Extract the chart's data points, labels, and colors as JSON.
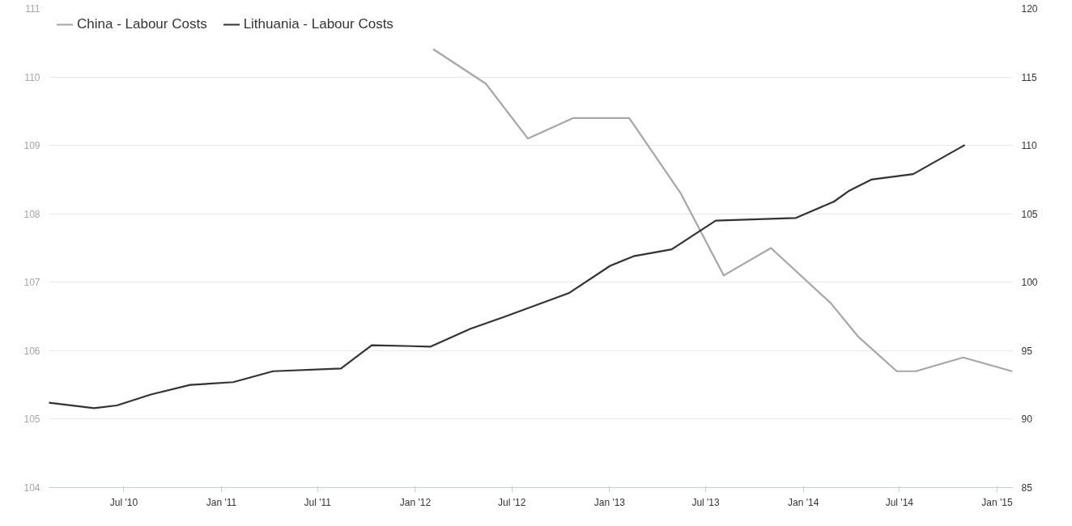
{
  "chart_data": {
    "type": "line",
    "series": [
      {
        "name": "China - Labour Costs",
        "color": "#a6a6a6",
        "axis": "y",
        "x": [
          "2012-02-05",
          "2012-05-13",
          "2012-07-31",
          "2012-10-25",
          "2013-02-07",
          "2013-05-15",
          "2013-08-04",
          "2013-11-01",
          "2014-02-21",
          "2014-04-15",
          "2014-06-26",
          "2014-08-01",
          "2014-10-29",
          "2015-01-29"
        ],
        "values": [
          110.4,
          109.9,
          109.1,
          109.4,
          109.4,
          108.3,
          107.1,
          107.5,
          106.7,
          106.2,
          105.7,
          105.7,
          105.9,
          105.7
        ]
      },
      {
        "name": "Lithuania - Labour Costs",
        "color": "#333333",
        "axis": "y2",
        "x": [
          "2010-02-10",
          "2010-05-06",
          "2010-06-18",
          "2010-08-21",
          "2010-11-03",
          "2011-01-23",
          "2011-04-08",
          "2011-08-14",
          "2011-10-11",
          "2012-01-30",
          "2012-04-14",
          "2012-06-19",
          "2012-10-16",
          "2013-01-02",
          "2013-02-15",
          "2013-04-28",
          "2013-07-20",
          "2013-12-18",
          "2014-02-28",
          "2014-03-29",
          "2014-05-09",
          "2014-07-27",
          "2014-10-31"
        ],
        "values": [
          91.2,
          90.8,
          91.0,
          91.8,
          92.5,
          92.7,
          93.5,
          93.7,
          95.4,
          95.3,
          96.6,
          97.5,
          99.2,
          101.2,
          101.9,
          102.4,
          104.5,
          104.7,
          105.9,
          106.7,
          107.5,
          107.9,
          110.0
        ]
      }
    ],
    "xlim": [
      "2010-02-10",
      "2015-01-30"
    ],
    "xticks": [
      {
        "value": "2010-07-01",
        "label": "Jul '10"
      },
      {
        "value": "2011-01-01",
        "label": "Jan '11"
      },
      {
        "value": "2011-07-01",
        "label": "Jul '11"
      },
      {
        "value": "2012-01-01",
        "label": "Jan '12"
      },
      {
        "value": "2012-07-01",
        "label": "Jul '12"
      },
      {
        "value": "2013-01-01",
        "label": "Jan '13"
      },
      {
        "value": "2013-07-01",
        "label": "Jul '13"
      },
      {
        "value": "2014-01-01",
        "label": "Jan '14"
      },
      {
        "value": "2014-07-01",
        "label": "Jul '14"
      },
      {
        "value": "2015-01-01",
        "label": "Jan '15"
      }
    ],
    "ylim": [
      104,
      111
    ],
    "yticks": [
      104,
      105,
      106,
      107,
      108,
      109,
      110,
      111
    ],
    "y2lim": [
      85,
      120
    ],
    "y2ticks": [
      85,
      90,
      95,
      100,
      105,
      110,
      115,
      120
    ],
    "grid": "y",
    "legend": "top left",
    "marker": "none",
    "line_style": "solid"
  }
}
